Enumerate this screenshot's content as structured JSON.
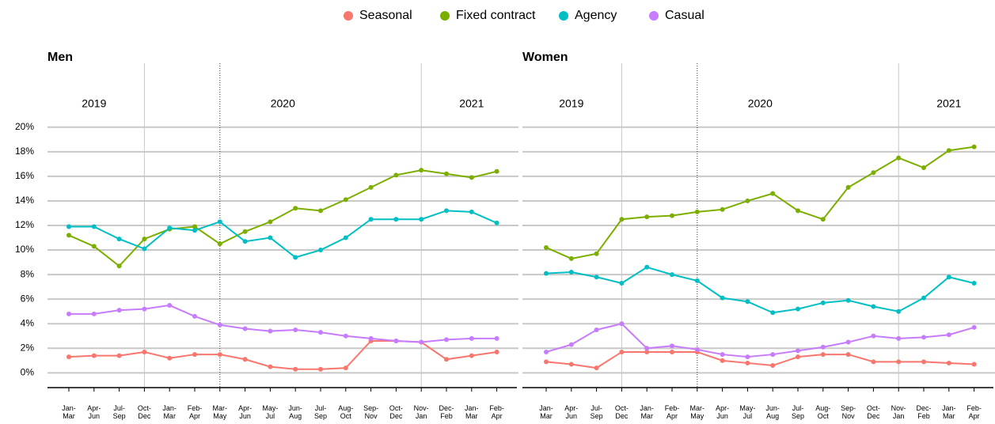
{
  "chart_data": [
    {
      "type": "line",
      "title": "Men",
      "legend": "top",
      "grid": true,
      "annotations": [
        "2019",
        "2020",
        "2021"
      ],
      "categories": [
        "Jan-Mar",
        "Apr-Jun",
        "Jul-Sep",
        "Oct-Dec",
        "Jan-Mar",
        "Feb-Apr",
        "Mar-May",
        "Apr-Jun",
        "May-Jul",
        "Jun-Aug",
        "Jul-Sep",
        "Aug-Oct",
        "Sep-Nov",
        "Oct-Dec",
        "Nov-Jan",
        "Dec-Feb",
        "Jan-Mar",
        "Feb-Apr"
      ],
      "ylim": [
        -1.2,
        25.2
      ],
      "yticks": [
        {
          "value": 0,
          "label": "0%"
        },
        {
          "value": 2,
          "label": "2%"
        },
        {
          "value": 4,
          "label": "4%"
        },
        {
          "value": 6,
          "label": "6%"
        },
        {
          "value": 8,
          "label": "8%"
        },
        {
          "value": 10,
          "label": "10%"
        },
        {
          "value": 12,
          "label": "12%"
        },
        {
          "value": 14,
          "label": "14%"
        },
        {
          "value": 16,
          "label": "16%"
        },
        {
          "value": 18,
          "label": "18%"
        },
        {
          "value": 20,
          "label": "20%"
        }
      ],
      "series": [
        {
          "name": "Seasonal",
          "color": "#f8766d",
          "values": [
            1.3,
            1.4,
            1.4,
            1.7,
            1.2,
            1.5,
            1.5,
            1.1,
            0.5,
            0.3,
            0.3,
            0.4,
            2.6,
            2.6,
            2.5,
            1.1,
            1.4,
            1.7
          ]
        },
        {
          "name": "Fixed contract",
          "color": "#7cae00",
          "values": [
            11.2,
            10.3,
            8.7,
            10.9,
            11.7,
            11.9,
            10.5,
            11.5,
            12.3,
            13.4,
            13.2,
            14.1,
            15.1,
            16.1,
            16.5,
            16.2,
            15.9,
            16.4
          ]
        },
        {
          "name": "Agency",
          "color": "#00bfc4",
          "values": [
            11.9,
            11.9,
            10.9,
            10.1,
            11.8,
            11.6,
            12.3,
            10.7,
            11.0,
            9.4,
            10.0,
            11.0,
            12.5,
            12.5,
            12.5,
            13.2,
            13.1,
            12.2
          ]
        },
        {
          "name": "Casual",
          "color": "#c77cff",
          "values": [
            4.8,
            4.8,
            5.1,
            5.2,
            5.5,
            4.6,
            3.9,
            3.6,
            3.4,
            3.5,
            3.3,
            3.0,
            2.8,
            2.6,
            2.5,
            2.7,
            2.8,
            2.8
          ]
        }
      ]
    },
    {
      "type": "line",
      "title": "Women",
      "grid": true,
      "annotations": [
        "2019",
        "2020",
        "2021"
      ],
      "categories": [
        "Jan-Mar",
        "Apr-Jun",
        "Jul-Sep",
        "Oct-Dec",
        "Jan-Mar",
        "Feb-Apr",
        "Mar-May",
        "Apr-Jun",
        "May-Jul",
        "Jun-Aug",
        "Jul-Sep",
        "Aug-Oct",
        "Sep-Nov",
        "Oct-Dec",
        "Nov-Jan",
        "Dec-Feb",
        "Jan-Mar",
        "Feb-Apr"
      ],
      "ylim": [
        -1.2,
        25.2
      ],
      "yticks": [
        0,
        2,
        4,
        6,
        8,
        10,
        12,
        14,
        16,
        18,
        20
      ],
      "series": [
        {
          "name": "Seasonal",
          "color": "#f8766d",
          "values": [
            0.9,
            0.7,
            0.4,
            1.7,
            1.7,
            1.7,
            1.7,
            1.0,
            0.8,
            0.6,
            1.3,
            1.5,
            1.5,
            0.9,
            0.9,
            0.9,
            0.8,
            0.7
          ]
        },
        {
          "name": "Fixed contract",
          "color": "#7cae00",
          "values": [
            10.2,
            9.3,
            9.7,
            12.5,
            12.7,
            12.8,
            13.1,
            13.3,
            14.0,
            14.6,
            13.2,
            12.5,
            15.1,
            16.3,
            17.5,
            16.7,
            18.1,
            18.4
          ]
        },
        {
          "name": "Agency",
          "color": "#00bfc4",
          "values": [
            8.1,
            8.2,
            7.8,
            7.3,
            8.6,
            8.0,
            7.5,
            6.1,
            5.8,
            4.9,
            5.2,
            5.7,
            5.9,
            5.4,
            5.0,
            6.1,
            7.8,
            7.3
          ]
        },
        {
          "name": "Casual",
          "color": "#c77cff",
          "values": [
            1.7,
            2.3,
            3.5,
            4.0,
            2.0,
            2.2,
            1.9,
            1.5,
            1.3,
            1.5,
            1.8,
            2.1,
            2.5,
            3.0,
            2.8,
            2.9,
            3.1,
            3.7
          ]
        }
      ]
    }
  ]
}
